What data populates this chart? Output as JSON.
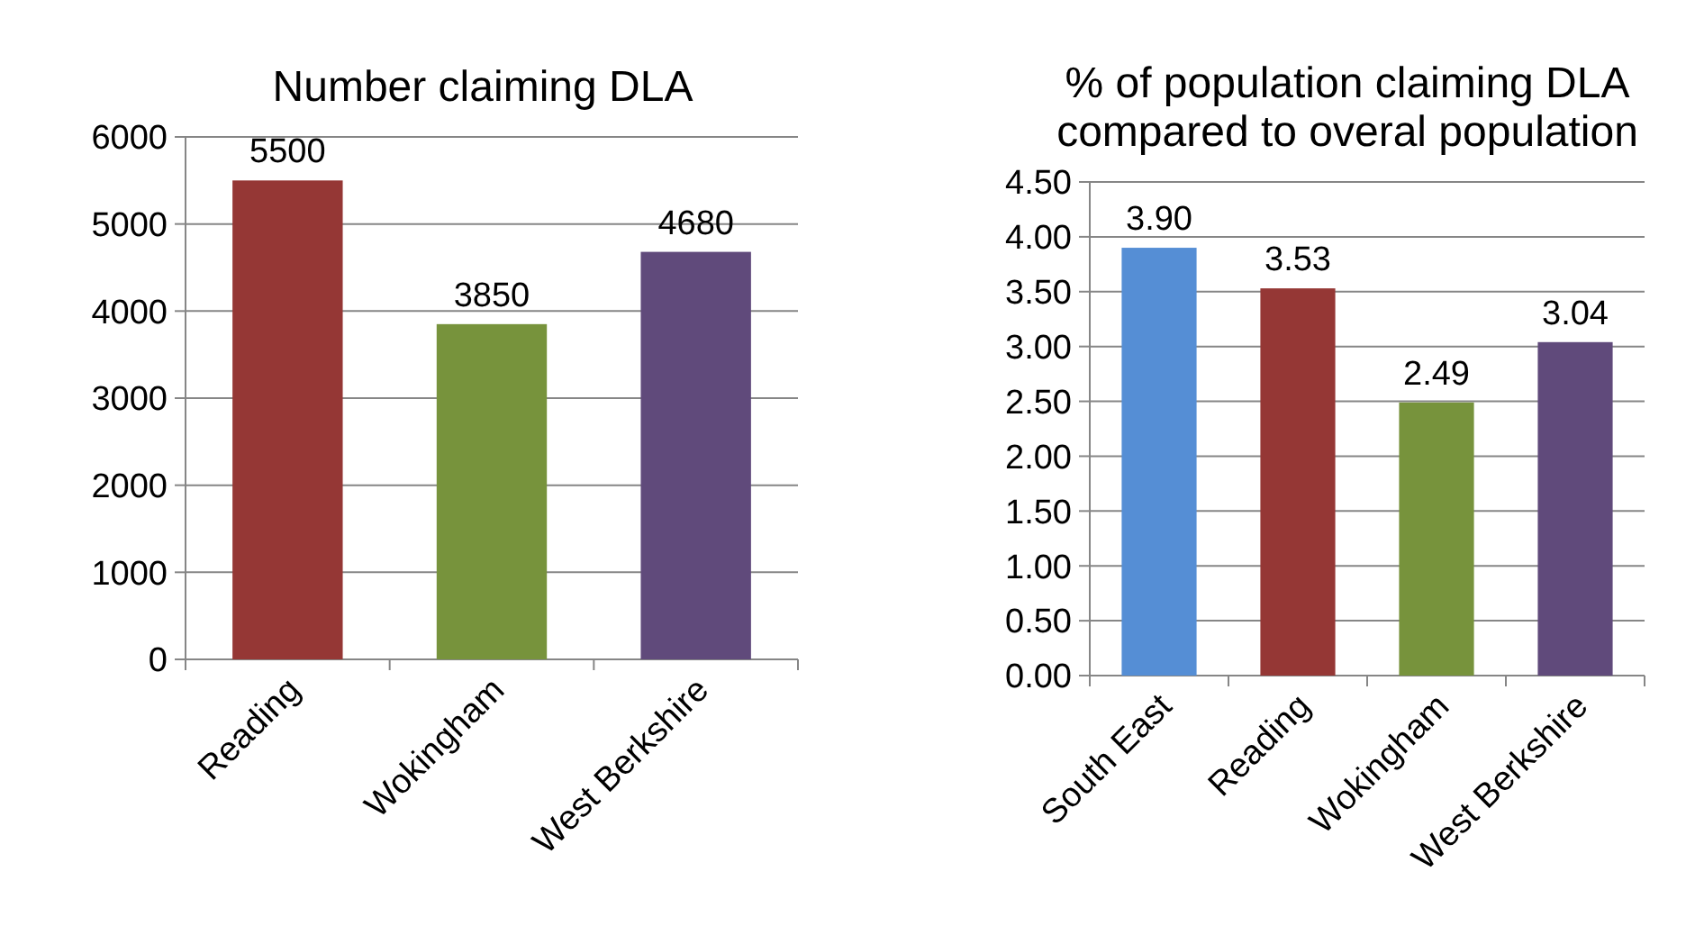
{
  "chart_data": [
    {
      "type": "bar",
      "title": "Number claiming DLA",
      "categories": [
        "Reading",
        "Wokingham",
        "West Berkshire"
      ],
      "values": [
        5500,
        3850,
        4680
      ],
      "colors": [
        "#953735",
        "#77933c",
        "#604a7b"
      ],
      "ylim": [
        0,
        6000
      ],
      "yticks": [
        0,
        1000,
        2000,
        3000,
        4000,
        5000,
        6000
      ],
      "grid": "y",
      "data_labels": true
    },
    {
      "type": "bar",
      "title": "% of population claiming DLA compared to overal population",
      "categories": [
        "South East",
        "Reading",
        "Wokingham",
        "West Berkshire"
      ],
      "values": [
        3.9,
        3.53,
        2.49,
        3.04
      ],
      "colors": [
        "#558ed5",
        "#953735",
        "#77933c",
        "#604a7b"
      ],
      "ylim": [
        0,
        4.5
      ],
      "yticks": [
        {
          "value": 0,
          "label": "0.00"
        },
        {
          "value": 0.5,
          "label": "0.50"
        },
        {
          "value": 1,
          "label": "1.00"
        },
        {
          "value": 1.5,
          "label": "1.50"
        },
        {
          "value": 2,
          "label": "2.00"
        },
        {
          "value": 2.5,
          "label": "2.50"
        },
        {
          "value": 3,
          "label": "3.00"
        },
        {
          "value": 3.5,
          "label": "3.50"
        },
        {
          "value": 4,
          "label": "4.00"
        },
        {
          "value": 4.5,
          "label": "4.50"
        }
      ],
      "grid": "y",
      "value_labels": [
        "3.90",
        "3.53",
        "2.49",
        "3.04"
      ]
    }
  ]
}
